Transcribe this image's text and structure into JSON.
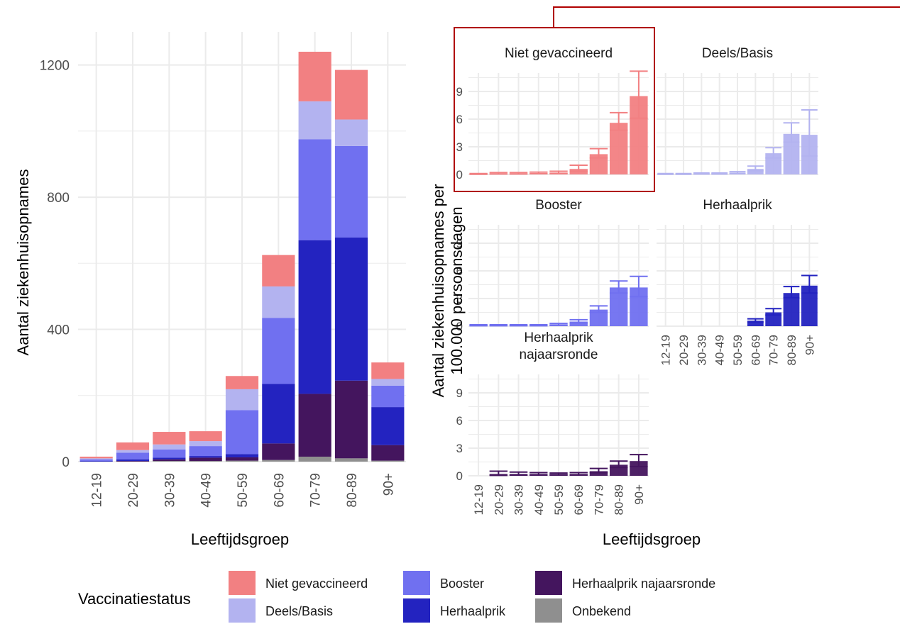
{
  "colors": {
    "Niet gevaccineerd": "#F28082",
    "Deels/Basis": "#B3B3F0",
    "Booster": "#7070F0",
    "Herhaalprik": "#2323C0",
    "Herhaalprik najaarsronde": "#44155E",
    "Onbekend": "#8F8F8F",
    "highlight": "#B00000",
    "grid": "#EBEBEB",
    "text": "#4D4D4D"
  },
  "chart_data": [
    {
      "type": "bar",
      "stacked": true,
      "xlabel": "Leeftijdsgroep",
      "ylabel": "Aantal ziekenhuisopnames",
      "ylim": [
        0,
        1300
      ],
      "yticks": [
        0,
        400,
        800,
        1200
      ],
      "categories": [
        "12-19",
        "20-29",
        "30-39",
        "40-49",
        "50-59",
        "60-69",
        "70-79",
        "80-89",
        "90+"
      ],
      "series": [
        {
          "name": "Onbekend",
          "values": [
            0,
            0,
            2,
            2,
            3,
            5,
            15,
            10,
            3
          ]
        },
        {
          "name": "Herhaalprik najaarsronde",
          "values": [
            0,
            2,
            5,
            10,
            10,
            50,
            190,
            235,
            47
          ]
        },
        {
          "name": "Herhaalprik",
          "values": [
            2,
            5,
            5,
            5,
            10,
            180,
            465,
            433,
            115
          ]
        },
        {
          "name": "Booster",
          "values": [
            5,
            20,
            25,
            30,
            133,
            200,
            305,
            277,
            65
          ]
        },
        {
          "name": "Deels/Basis",
          "values": [
            3,
            8,
            15,
            15,
            63,
            95,
            115,
            80,
            20
          ]
        },
        {
          "name": "Niet gevaccineerd",
          "values": [
            5,
            23,
            38,
            30,
            40,
            95,
            150,
            150,
            50
          ]
        }
      ]
    },
    {
      "type": "bar",
      "facetted": true,
      "xlabel": "Leeftijdsgroep",
      "ylabel": "Aantal ziekenhuisopnames per 100.000 persoonsdagen",
      "ylim": [
        0,
        11
      ],
      "yticks": [
        0,
        3,
        6,
        9
      ],
      "categories": [
        "12-19",
        "20-29",
        "30-39",
        "40-49",
        "50-59",
        "60-69",
        "70-79",
        "80-89",
        "90+"
      ],
      "panels": [
        {
          "name": "Niet gevaccineerd",
          "values": [
            0.05,
            0.1,
            0.1,
            0.15,
            0.2,
            0.6,
            2.2,
            5.6,
            8.5
          ],
          "upper": [
            0.1,
            0.2,
            0.2,
            0.25,
            0.35,
            1.0,
            2.8,
            6.7,
            11.2
          ],
          "lower": [
            0.02,
            0.05,
            0.05,
            0.08,
            0.12,
            0.35,
            1.8,
            4.8,
            6.1
          ]
        },
        {
          "name": "Deels/Basis",
          "values": [
            0.05,
            0.05,
            0.1,
            0.1,
            0.2,
            0.6,
            2.3,
            4.4,
            4.3
          ],
          "upper": [
            0.1,
            0.1,
            0.15,
            0.15,
            0.3,
            0.9,
            2.9,
            5.6,
            7.0
          ],
          "lower": [
            0.02,
            0.02,
            0.05,
            0.05,
            0.12,
            0.4,
            1.8,
            3.5,
            2.0
          ]
        },
        {
          "name": "Booster",
          "values": [
            0.1,
            0.1,
            0.1,
            0.1,
            0.2,
            0.5,
            1.8,
            4.2,
            4.2
          ],
          "upper": [
            0.15,
            0.15,
            0.15,
            0.15,
            0.3,
            0.7,
            2.2,
            4.9,
            5.4
          ],
          "lower": [
            0.05,
            0.05,
            0.05,
            0.05,
            0.12,
            0.35,
            1.5,
            3.6,
            3.2
          ]
        },
        {
          "name": "Herhaalprik",
          "values": [
            null,
            null,
            null,
            null,
            null,
            0.6,
            1.5,
            3.6,
            4.4
          ],
          "upper": [
            null,
            null,
            null,
            null,
            null,
            0.8,
            1.9,
            4.3,
            5.5
          ],
          "lower": [
            null,
            null,
            null,
            null,
            null,
            0.45,
            1.2,
            3.1,
            3.6
          ]
        },
        {
          "name": "Herhaalprik\nnajaarsronde",
          "values": [
            null,
            0.2,
            0.2,
            0.2,
            0.2,
            0.2,
            0.5,
            1.2,
            1.6
          ],
          "upper": [
            null,
            0.5,
            0.4,
            0.35,
            0.3,
            0.35,
            0.8,
            1.6,
            2.3
          ],
          "lower": [
            null,
            0.05,
            0.08,
            0.1,
            0.12,
            0.12,
            0.35,
            0.9,
            1.0
          ]
        }
      ]
    }
  ],
  "legend": {
    "title": "Vaccinatiestatus",
    "items": [
      "Niet gevaccineerd",
      "Deels/Basis",
      "Booster",
      "Herhaalprik",
      "Herhaalprik najaarsronde",
      "Onbekend"
    ]
  }
}
